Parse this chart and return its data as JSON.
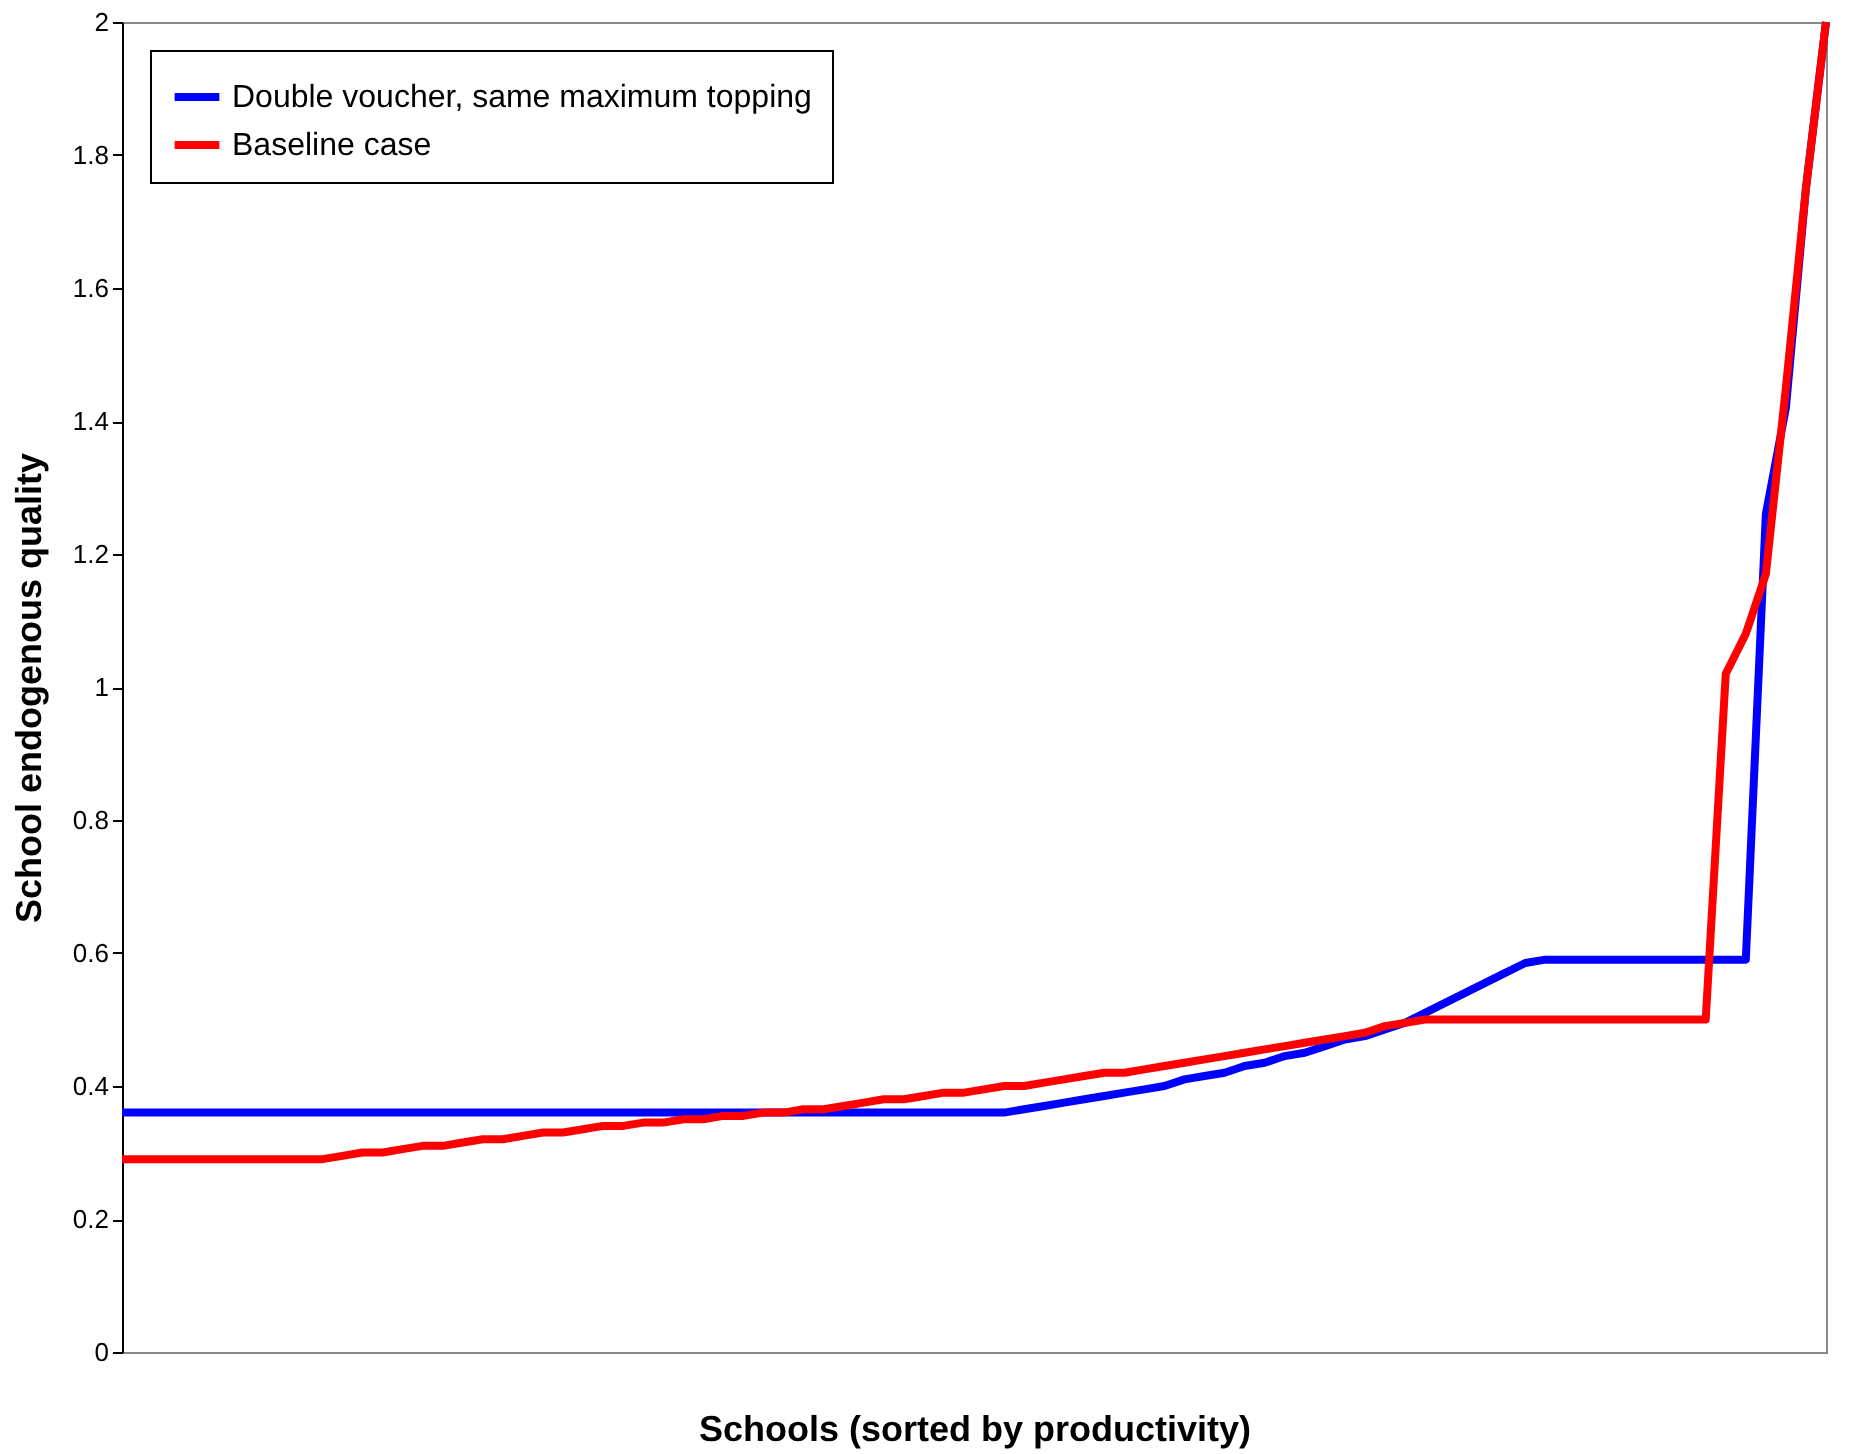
{
  "chart_data": {
    "type": "line",
    "xlabel": "Schools (sorted by productivity)",
    "ylabel": "School endogenous quality",
    "categories": [
      null,
      null,
      null,
      null,
      null,
      null,
      null,
      null,
      null,
      null,
      null,
      null,
      null,
      null,
      null,
      null,
      null,
      null,
      null,
      null,
      null,
      null,
      null,
      null,
      null,
      null,
      null,
      null,
      null,
      null,
      null,
      null,
      null,
      null,
      null,
      null,
      null,
      null,
      null,
      null,
      null,
      null,
      null,
      null,
      null,
      null,
      null,
      null,
      null,
      null,
      null,
      null,
      null,
      null,
      null,
      null,
      null,
      null,
      null,
      null,
      null,
      null,
      null,
      null,
      null,
      null,
      null,
      null,
      null,
      null,
      null,
      null,
      null,
      null,
      null,
      null,
      null,
      null,
      null,
      null,
      null,
      null,
      null,
      null,
      null,
      null
    ],
    "series": [
      {
        "name": "Double voucher, same maximum topping",
        "color": "#0000ff",
        "values": [
          0.36,
          0.36,
          0.36,
          0.36,
          0.36,
          0.36,
          0.36,
          0.36,
          0.36,
          0.36,
          0.36,
          0.36,
          0.36,
          0.36,
          0.36,
          0.36,
          0.36,
          0.36,
          0.36,
          0.36,
          0.36,
          0.36,
          0.36,
          0.36,
          0.36,
          0.36,
          0.36,
          0.36,
          0.36,
          0.36,
          0.36,
          0.36,
          0.36,
          0.36,
          0.36,
          0.36,
          0.36,
          0.36,
          0.36,
          0.36,
          0.36,
          0.36,
          0.36,
          0.36,
          0.36,
          0.365,
          0.37,
          0.375,
          0.38,
          0.385,
          0.39,
          0.395,
          0.4,
          0.41,
          0.415,
          0.42,
          0.43,
          0.435,
          0.445,
          0.45,
          0.46,
          0.47,
          0.475,
          0.485,
          0.495,
          0.51,
          0.525,
          0.54,
          0.555,
          0.57,
          0.585,
          0.59,
          0.59,
          0.59,
          0.59,
          0.59,
          0.59,
          0.59,
          0.59,
          0.59,
          0.59,
          0.59,
          1.26,
          1.42,
          1.75,
          2.0
        ]
      },
      {
        "name": "Baseline case",
        "color": "#ff0000",
        "values": [
          0.29,
          0.29,
          0.29,
          0.29,
          0.29,
          0.29,
          0.29,
          0.29,
          0.29,
          0.29,
          0.29,
          0.295,
          0.3,
          0.3,
          0.305,
          0.31,
          0.31,
          0.315,
          0.32,
          0.32,
          0.325,
          0.33,
          0.33,
          0.335,
          0.34,
          0.34,
          0.345,
          0.345,
          0.35,
          0.35,
          0.355,
          0.355,
          0.36,
          0.36,
          0.365,
          0.365,
          0.37,
          0.375,
          0.38,
          0.38,
          0.385,
          0.39,
          0.39,
          0.395,
          0.4,
          0.4,
          0.405,
          0.41,
          0.415,
          0.42,
          0.42,
          0.425,
          0.43,
          0.435,
          0.44,
          0.445,
          0.45,
          0.455,
          0.46,
          0.465,
          0.47,
          0.475,
          0.48,
          0.49,
          0.495,
          0.5,
          0.5,
          0.5,
          0.5,
          0.5,
          0.5,
          0.5,
          0.5,
          0.5,
          0.5,
          0.5,
          0.5,
          0.5,
          0.5,
          0.5,
          1.02,
          1.08,
          1.17,
          1.45,
          1.75,
          2.0
        ]
      }
    ],
    "ylim": [
      0,
      2
    ],
    "yticks": [
      0,
      0.2,
      0.4,
      0.6,
      0.8,
      1,
      1.2,
      1.4,
      1.6,
      1.8,
      2
    ],
    "tick_labels": "y",
    "grid": false,
    "legend": "top left",
    "line_style": "solid",
    "marker": "none"
  }
}
